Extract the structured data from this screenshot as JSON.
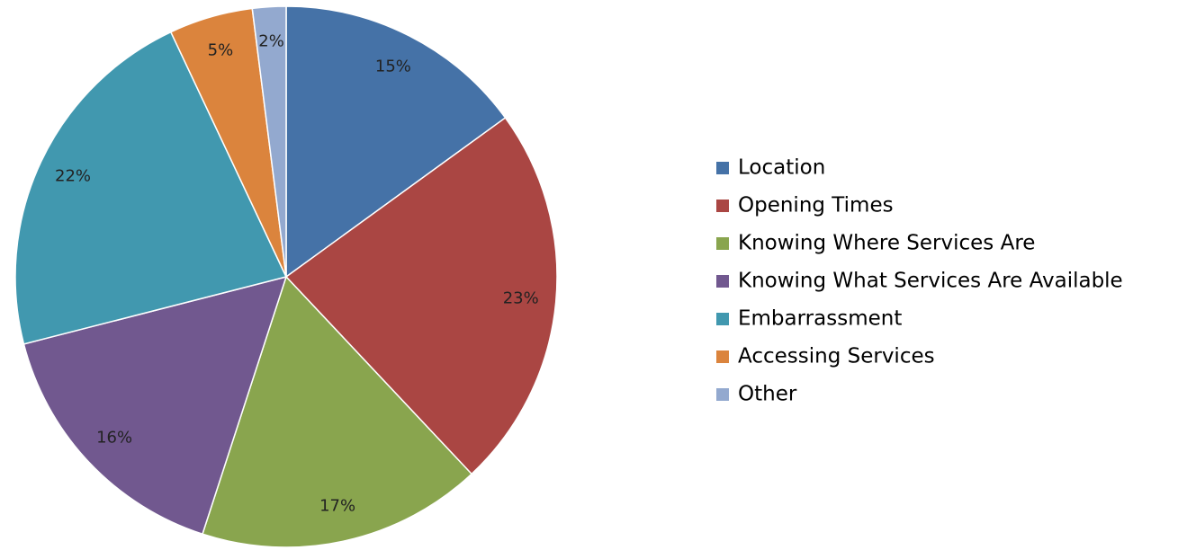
{
  "chart_data": {
    "type": "pie",
    "categories": [
      "Location",
      "Opening Times",
      "Knowing Where Services Are",
      "Knowing What Services Are Available",
      "Embarrassment",
      "Accessing Services",
      "Other"
    ],
    "values": [
      15,
      23,
      17,
      16,
      22,
      5,
      2
    ],
    "value_labels": [
      "15%",
      "23%",
      "17%",
      "16%",
      "22%",
      "5%",
      "2%"
    ],
    "colors": [
      "#4572a7",
      "#aa4643",
      "#89a54e",
      "#71588f",
      "#4198af",
      "#db843d",
      "#93a9cf"
    ],
    "legend": "right"
  }
}
